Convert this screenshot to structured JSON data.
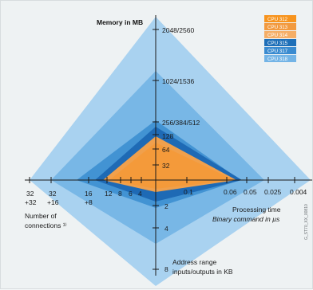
{
  "chart_data": {
    "type": "radar",
    "axes": [
      {
        "name": "memory",
        "label": "Memory in MB",
        "unit": "MB",
        "ticks": [
          "128",
          "256/384/512",
          "1024/1536",
          "2048/2560"
        ]
      },
      {
        "name": "processing",
        "label": "Processing time",
        "label_line2": "Binary command in µs",
        "unit": "µs",
        "ticks": [
          "0.1",
          "0.06",
          "0.05",
          "0.025",
          "0.004"
        ]
      },
      {
        "name": "io",
        "label": "Address range",
        "label_line2": "inputs/outputs in KB",
        "unit": "KB",
        "ticks": [
          "2",
          "4",
          "8"
        ]
      },
      {
        "name": "connections",
        "label": "Number of",
        "label_line2": "connections ¹⁾",
        "ticks": [
          "4",
          "6",
          "8",
          "12",
          "16 +8",
          "32 +16",
          "32 +32"
        ]
      }
    ],
    "extra_ticks_memory": [
      "32",
      "64"
    ],
    "legend": [
      {
        "name": "CPU 312",
        "color": "#f7941e"
      },
      {
        "name": "CPU 313",
        "color": "#f29a3f"
      },
      {
        "name": "CPU 314",
        "color": "#f5ae66"
      },
      {
        "name": "CPU 315",
        "color": "#1e6fb8"
      },
      {
        "name": "CPU 317",
        "color": "#3a8bd0"
      },
      {
        "name": "CPU 318",
        "color": "#73b4e6"
      }
    ],
    "series": [
      {
        "name": "CPU 318",
        "color": "#a4d0f0"
      },
      {
        "name": "CPU 317",
        "color": "#6fb1e3"
      },
      {
        "name": "CPU 315",
        "color": "#3d8fd1"
      },
      {
        "name": "CPU 314",
        "color": "#1d68b2"
      },
      {
        "name": "CPU 313",
        "color": "#f29a3f"
      },
      {
        "name": "CPU 312",
        "color": "#f7941e"
      }
    ],
    "figure_code": "G_ST70_XX_00810"
  }
}
